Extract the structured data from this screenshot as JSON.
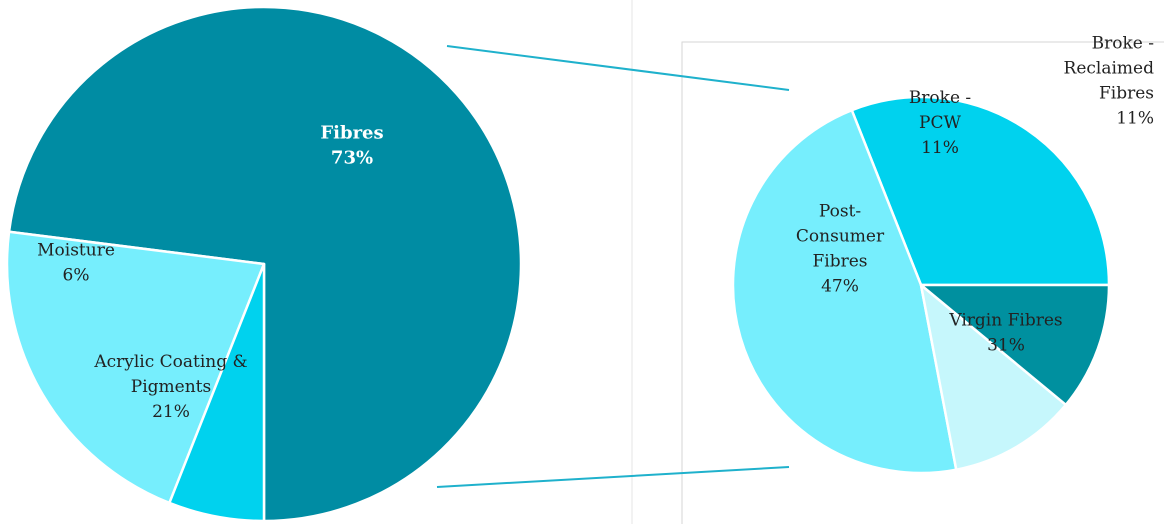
{
  "chart_data": [
    {
      "type": "pie",
      "title": "",
      "slices": [
        {
          "name": "fibres",
          "label_lines": [
            "Fibres",
            "73%"
          ],
          "value": 73,
          "color": "#008ca3"
        },
        {
          "name": "acrylic",
          "label_lines": [
            "Acrylic Coating &",
            "Pigments",
            "21%"
          ],
          "value": 21,
          "color": "#76eefd"
        },
        {
          "name": "moisture",
          "label_lines": [
            "Moisture",
            "6%"
          ],
          "value": 6,
          "color": "#00d2ee"
        }
      ]
    },
    {
      "type": "pie",
      "title": "",
      "slices": [
        {
          "name": "virgin",
          "label_lines": [
            "Virgin Fibres",
            "31%"
          ],
          "value": 31,
          "color": "#00d2ee"
        },
        {
          "name": "post-consumer",
          "label_lines": [
            "Post-",
            "Consumer",
            "Fibres",
            "47%"
          ],
          "value": 47,
          "color": "#76eefd"
        },
        {
          "name": "broke-pcw",
          "label_lines": [
            "Broke -",
            "PCW",
            "11%"
          ],
          "value": 11,
          "color": "#c6f7fc"
        },
        {
          "name": "broke-reclaimed",
          "label_lines": [
            "Broke -",
            "Reclaimed",
            "Fibres",
            "11%"
          ],
          "value": 11,
          "color": "#00909f"
        }
      ]
    }
  ]
}
